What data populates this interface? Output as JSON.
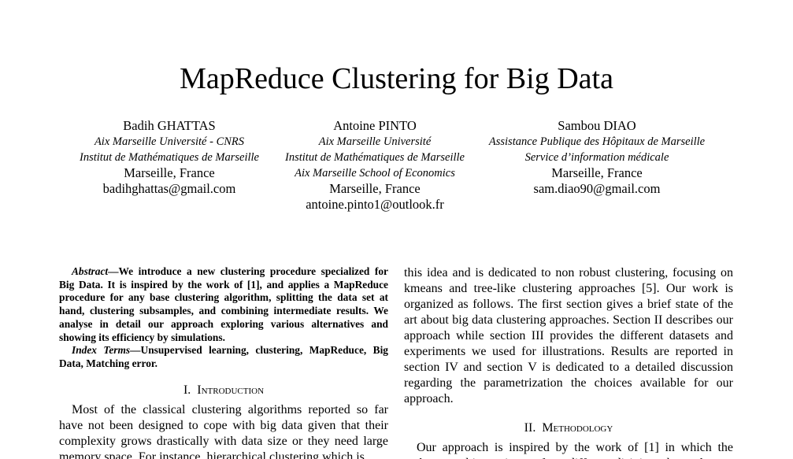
{
  "title": "MapReduce Clustering for Big Data",
  "authors": [
    {
      "name": "Badih GHATTAS",
      "affiliations": [
        "Aix Marseille Université - CNRS",
        "Institut de Mathématiques de Marseille"
      ],
      "location": "Marseille, France",
      "email": "badihghattas@gmail.com"
    },
    {
      "name": "Antoine PINTO",
      "affiliations": [
        "Aix Marseille Université",
        "Institut de Mathématiques de Marseille",
        "Aix Marseille School of Economics"
      ],
      "location": "Marseille, France",
      "email": "antoine.pinto1@outlook.fr"
    },
    {
      "name": "Sambou DIAO",
      "affiliations": [
        "Assistance Publique des Hôpitaux de Marseille",
        "Service d’information médicale"
      ],
      "location": "Marseille, France",
      "email": "sam.diao90@gmail.com"
    }
  ],
  "abstract": {
    "label": "Abstract",
    "text": "—We introduce a new clustering procedure specialized for Big Data. It is inspired by the work of [1], and applies a MapReduce procedure for any base clustering algorithm, splitting the data set at hand, clustering subsamples, and combining intermediate results. We analyse in detail our approach exploring various alternatives and showing its efficiency by simulations."
  },
  "index_terms": {
    "label": "Index Terms",
    "text": "—Unsupervised learning, clustering, MapReduce, Big Data, Matching error."
  },
  "sections": [
    {
      "num": "I.",
      "title": "Introduction",
      "text": "Most of the classical clustering algorithms reported so far have not been designed to cope with big data given that their complexity grows drastically with data size or they need large memory space. For instance, hierarchical clustering which is"
    },
    {
      "num": "II.",
      "title": "Methodology",
      "text": "Our approach is inspired by the work of [1] in which the authors combine estimates from different disjoint subsamples"
    }
  ],
  "right_intro_text": "this idea and is dedicated to non robust clustering, focusing on kmeans and tree-like clustering approaches [5]. Our work is organized as follows. The first section gives a brief state of the art about big data clustering approaches. Section II describes our approach while section III provides the different datasets and experiments we used for illustrations. Results are reported in section IV and section V is dedicated to a detailed discussion regarding the parametrization the choices available for our approach."
}
